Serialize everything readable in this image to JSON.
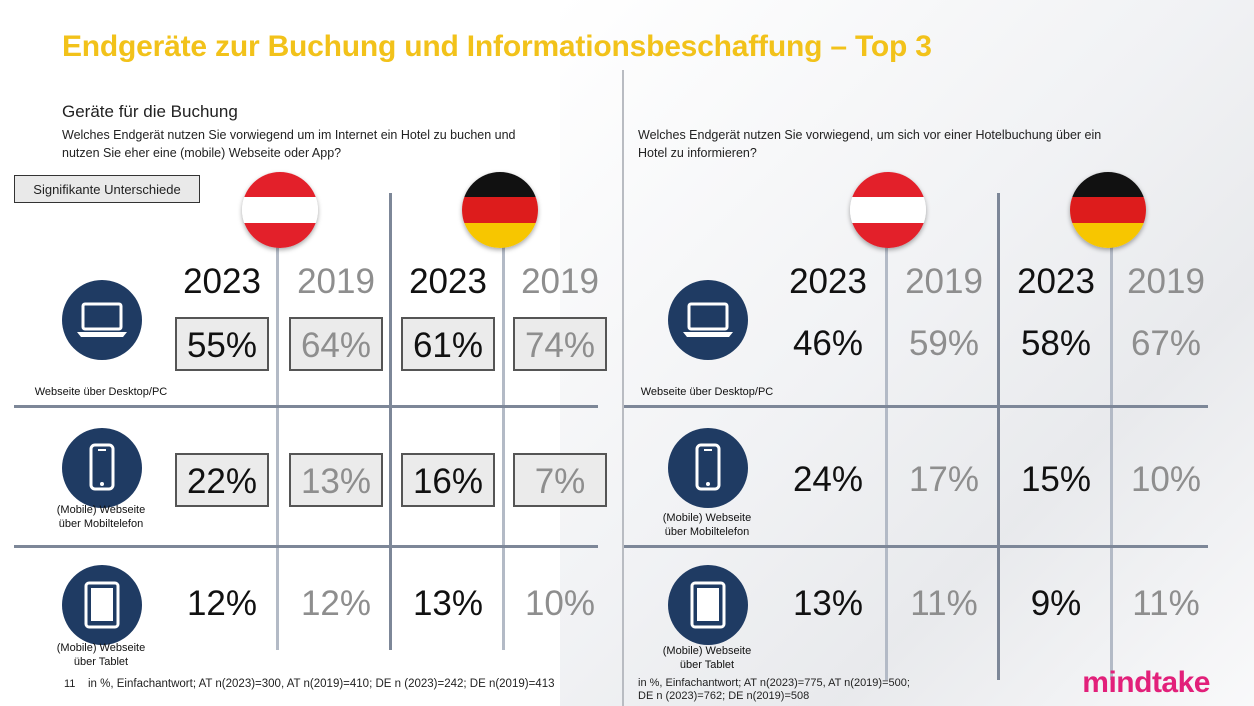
{
  "title": "Endgeräte zur Buchung und Informationsbeschaffung – Top 3",
  "left": {
    "heading": "Geräte für die Buchung",
    "question_line1": "Welches Endgerät nutzen Sie vorwiegend um im Internet ein Hotel zu buchen und",
    "question_line2": "nutzen Sie eher eine (mobile) Webseite oder App?",
    "significance_label": "Signifikante Unterschiede",
    "footnote_marker": "11",
    "footnote": "in %, Einfachantwort; AT n(2023)=300, AT n(2019)=410; DE n (2023)=242; DE n(2019)=413"
  },
  "right": {
    "question_line1": "Welches Endgerät nutzen Sie vorwiegend, um sich vor einer Hotelbuchung über ein",
    "question_line2": "Hotel zu informieren?",
    "footnote_line1": "in %, Einfachantwort; AT n(2023)=775, AT n(2019)=500;",
    "footnote_line2": "DE n (2023)=762; DE n(2019)=508"
  },
  "years": [
    "2023",
    "2019",
    "2023",
    "2019"
  ],
  "devices": [
    {
      "icon": "laptop-icon",
      "label_line1": "Webseite über Desktop/PC",
      "label_line2": ""
    },
    {
      "icon": "smartphone-icon",
      "label_line1": "(Mobile) Webseite",
      "label_line2": "über Mobiltelefon"
    },
    {
      "icon": "tablet-icon",
      "label_line1": "(Mobile) Webseite",
      "label_line2": "über Tablet"
    }
  ],
  "flags": {
    "austria": [
      "#e3202a",
      "#ffffff",
      "#e3202a"
    ],
    "germany": [
      "#111111",
      "#dd1c1c",
      "#f7c600"
    ]
  },
  "colors": {
    "title": "#f2c21a",
    "icon": "#1f3b63",
    "logo": "#e2207a"
  },
  "brand": {
    "logo_text": "mindtake"
  },
  "chart_data": [
    {
      "type": "table",
      "title": "Geräte für die Buchung",
      "columns": [
        "AT 2023",
        "AT 2019",
        "DE 2023",
        "DE 2019"
      ],
      "rows": [
        {
          "device": "Webseite über Desktop/PC",
          "values": [
            "55%",
            "64%",
            "61%",
            "74%"
          ],
          "significant": [
            true,
            true,
            true,
            true
          ]
        },
        {
          "device": "(Mobile) Webseite über Mobiltelefon",
          "values": [
            "22%",
            "13%",
            "16%",
            "7%"
          ],
          "significant": [
            true,
            true,
            true,
            true
          ]
        },
        {
          "device": "(Mobile) Webseite über Tablet",
          "values": [
            "12%",
            "12%",
            "13%",
            "10%"
          ],
          "significant": [
            false,
            false,
            false,
            false
          ]
        }
      ]
    },
    {
      "type": "table",
      "title": "",
      "columns": [
        "AT 2023",
        "AT 2019",
        "DE 2023",
        "DE 2019"
      ],
      "rows": [
        {
          "device": "Webseite über Desktop/PC",
          "values": [
            "46%",
            "59%",
            "58%",
            "67%"
          ],
          "significant": [
            false,
            false,
            false,
            false
          ]
        },
        {
          "device": "(Mobile) Webseite über Mobiltelefon",
          "values": [
            "24%",
            "17%",
            "15%",
            "10%"
          ],
          "significant": [
            false,
            false,
            false,
            false
          ]
        },
        {
          "device": "(Mobile) Webseite über Tablet",
          "values": [
            "13%",
            "11%",
            "9%",
            "11%"
          ],
          "significant": [
            false,
            false,
            false,
            false
          ]
        }
      ]
    }
  ]
}
